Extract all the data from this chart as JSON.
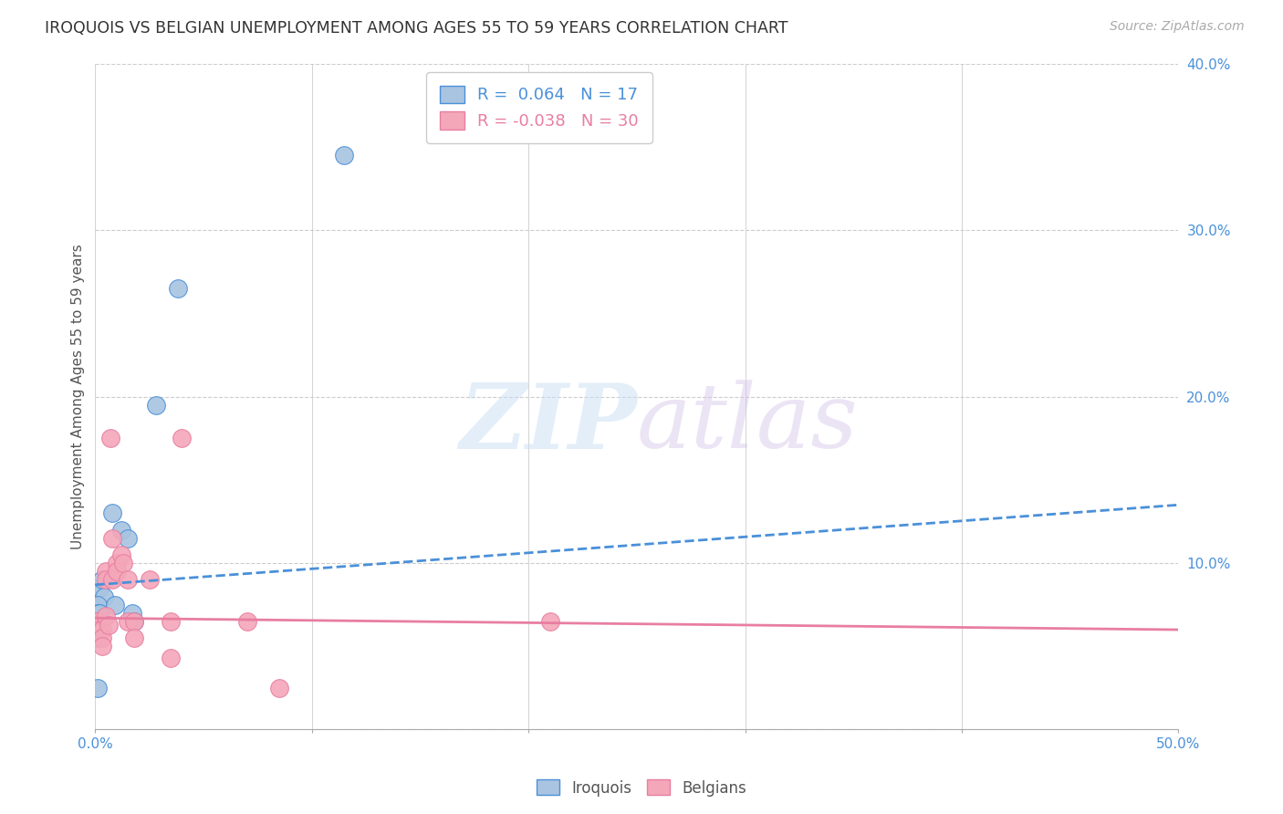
{
  "title": "IROQUOIS VS BELGIAN UNEMPLOYMENT AMONG AGES 55 TO 59 YEARS CORRELATION CHART",
  "source": "Source: ZipAtlas.com",
  "ylabel": "Unemployment Among Ages 55 to 59 years",
  "xlim": [
    0.0,
    0.5
  ],
  "ylim": [
    0.0,
    0.4
  ],
  "xticks": [
    0.0,
    0.1,
    0.2,
    0.3,
    0.4,
    0.5
  ],
  "yticks": [
    0.0,
    0.1,
    0.2,
    0.3,
    0.4
  ],
  "iroquois_color": "#a8c4e0",
  "belgians_color": "#f4a7b9",
  "iroquois_line_color": "#4a90d9",
  "belgians_line_color": "#e87ea1",
  "iroquois_R": "0.064",
  "iroquois_N": "17",
  "belgians_R": "-0.038",
  "belgians_N": "30",
  "legend_label_iroquois": "Iroquois",
  "legend_label_belgians": "Belgians",
  "iroquois_scatter_x": [
    0.002,
    0.003,
    0.004,
    0.001,
    0.001,
    0.002,
    0.001,
    0.001,
    0.008,
    0.009,
    0.012,
    0.015,
    0.017,
    0.018,
    0.028,
    0.038,
    0.115
  ],
  "iroquois_scatter_y": [
    0.085,
    0.09,
    0.08,
    0.075,
    0.07,
    0.07,
    0.055,
    0.025,
    0.13,
    0.075,
    0.12,
    0.115,
    0.07,
    0.065,
    0.195,
    0.265,
    0.345
  ],
  "belgians_scatter_x": [
    0.0,
    0.0,
    0.001,
    0.002,
    0.002,
    0.003,
    0.003,
    0.003,
    0.005,
    0.005,
    0.005,
    0.006,
    0.007,
    0.008,
    0.008,
    0.01,
    0.01,
    0.012,
    0.013,
    0.015,
    0.015,
    0.018,
    0.018,
    0.025,
    0.035,
    0.035,
    0.04,
    0.07,
    0.085,
    0.21
  ],
  "belgians_scatter_y": [
    0.065,
    0.063,
    0.065,
    0.063,
    0.06,
    0.06,
    0.055,
    0.05,
    0.095,
    0.09,
    0.068,
    0.063,
    0.175,
    0.115,
    0.09,
    0.1,
    0.095,
    0.105,
    0.1,
    0.09,
    0.065,
    0.065,
    0.055,
    0.09,
    0.065,
    0.043,
    0.175,
    0.065,
    0.025,
    0.065
  ],
  "iroquois_trend_x": [
    0.0,
    0.5
  ],
  "iroquois_trend_y": [
    0.087,
    0.135
  ],
  "belgians_trend_x": [
    0.0,
    0.5
  ],
  "belgians_trend_y": [
    0.067,
    0.06
  ],
  "watermark_zip": "ZIP",
  "watermark_atlas": "atlas",
  "background_color": "#ffffff",
  "grid_color": "#cccccc"
}
